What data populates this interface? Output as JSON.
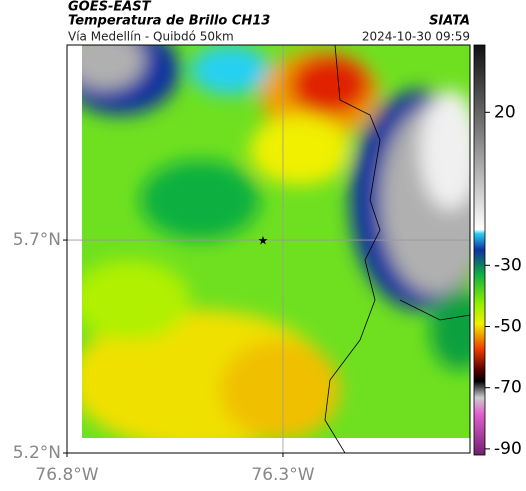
{
  "header": {
    "source": "GOES-EAST",
    "title": "Temperatura de Brillo CH13",
    "subtitle": "Vía Medellín - Quibdó 50km",
    "org": "SIATA",
    "datetime": "2024-10-30 09:59"
  },
  "map": {
    "xlim": [
      -76.8,
      -75.867
    ],
    "ylim": [
      5.2,
      6.158
    ],
    "xticks": [
      {
        "value": -76.8,
        "label": "76.8°W"
      },
      {
        "value": -76.3,
        "label": "76.3°W"
      }
    ],
    "yticks": [
      {
        "value": 5.2,
        "label": "5.2°N"
      },
      {
        "value": 5.7,
        "label": "5.7°N"
      }
    ]
  },
  "colorbar": {
    "lim": [
      42,
      -92
    ],
    "ticks": [
      20,
      -30,
      -50,
      -70,
      -90
    ]
  }
}
